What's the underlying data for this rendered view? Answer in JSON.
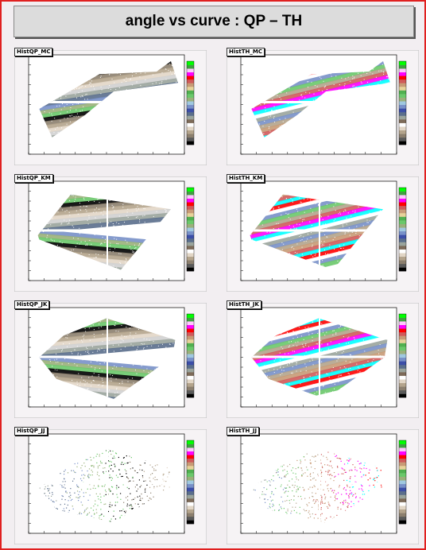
{
  "title": "angle vs curve : QP – TH",
  "pads": [
    {
      "name": "HistQP_MC",
      "shape": "mc",
      "family": "qp"
    },
    {
      "name": "HistTH_MC",
      "shape": "mc",
      "family": "th"
    },
    {
      "name": "HistQP_KM",
      "shape": "km",
      "family": "qp"
    },
    {
      "name": "HistTH_KM",
      "shape": "km",
      "family": "th"
    },
    {
      "name": "HistQP_JK",
      "shape": "jk",
      "family": "qp"
    },
    {
      "name": "HistTH_JK",
      "shape": "jk",
      "family": "th"
    },
    {
      "name": "HistQP_JJ",
      "shape": "jj",
      "family": "qp"
    },
    {
      "name": "HistTH_JJ",
      "shape": "jj",
      "family": "th"
    }
  ],
  "palette": [
    "#000000",
    "#5a5a5a",
    "#8c7f6e",
    "#b4a48c",
    "#e2d6c6",
    "#ffffff",
    "#7d6a58",
    "#9aa49c",
    "#5a6e8c",
    "#3c4ea8",
    "#7890c8",
    "#a0c8e0",
    "#9ab07a",
    "#6ac86a",
    "#50b050",
    "#e7d29a",
    "#c89a76",
    "#d05a5a",
    "#ff0000",
    "#ff00ff",
    "#ffc8ff",
    "#40a040",
    "#00ff00"
  ],
  "colors": {
    "frame": "#e02020",
    "title_bg": "#dcdcdc",
    "pad_bg": "#f6f3f5"
  }
}
